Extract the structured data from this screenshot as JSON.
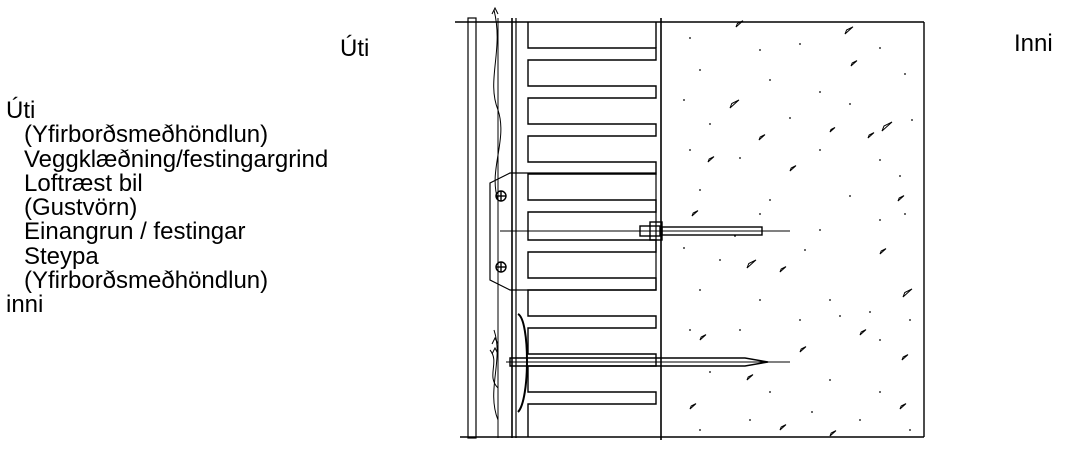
{
  "labels": {
    "outside_top": "Úti",
    "inside_top": "Inni"
  },
  "legend": [
    "Úti",
    "(Yfirborðsmeðhöndlun)",
    "Veggklæðning/festingargrind",
    "Loftræst bil",
    "(Gustvörn)",
    "Einangrun / festingar",
    "Steypa",
    "(Yfirborðsmeðhöndlun)",
    "inni"
  ]
}
